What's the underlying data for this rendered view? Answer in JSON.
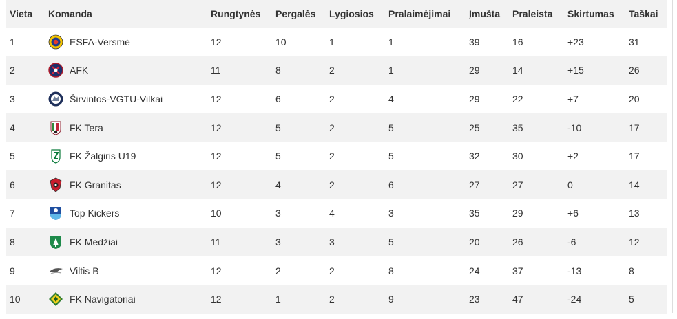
{
  "headers": {
    "position": "Vieta",
    "team": "Komanda",
    "played": "Rungtynės",
    "wins": "Pergalės",
    "draws": "Lygiosios",
    "losses": "Pralaimėjimai",
    "goals_for": "Įmušta",
    "goals_against": "Praleista",
    "goal_diff": "Skirtumas",
    "points": "Taškai"
  },
  "rows": [
    {
      "position": "1",
      "team": "ESFA-Versmė",
      "played": "12",
      "wins": "10",
      "draws": "1",
      "losses": "1",
      "goals_for": "39",
      "goals_against": "16",
      "goal_diff": "+23",
      "points": "31",
      "logo": "esfa-logo"
    },
    {
      "position": "2",
      "team": "AFK",
      "played": "11",
      "wins": "8",
      "draws": "2",
      "losses": "1",
      "goals_for": "29",
      "goals_against": "14",
      "goal_diff": "+15",
      "points": "26",
      "logo": "afk-logo"
    },
    {
      "position": "3",
      "team": "Širvintos-VGTU-Vilkai",
      "played": "12",
      "wins": "6",
      "draws": "2",
      "losses": "4",
      "goals_for": "29",
      "goals_against": "22",
      "goal_diff": "+7",
      "points": "20",
      "logo": "vilkai-logo"
    },
    {
      "position": "4",
      "team": "FK Tera",
      "played": "12",
      "wins": "5",
      "draws": "2",
      "losses": "5",
      "goals_for": "25",
      "goals_against": "35",
      "goal_diff": "-10",
      "points": "17",
      "logo": "tera-logo"
    },
    {
      "position": "5",
      "team": "FK Žalgiris U19",
      "played": "12",
      "wins": "5",
      "draws": "2",
      "losses": "5",
      "goals_for": "32",
      "goals_against": "30",
      "goal_diff": "+2",
      "points": "17",
      "logo": "zalgiris-logo"
    },
    {
      "position": "6",
      "team": "FK Granitas",
      "played": "12",
      "wins": "4",
      "draws": "2",
      "losses": "6",
      "goals_for": "27",
      "goals_against": "27",
      "goal_diff": "0",
      "points": "14",
      "logo": "granitas-logo"
    },
    {
      "position": "7",
      "team": "Top Kickers",
      "played": "10",
      "wins": "3",
      "draws": "4",
      "losses": "3",
      "goals_for": "35",
      "goals_against": "29",
      "goal_diff": "+6",
      "points": "13",
      "logo": "topkickers-logo"
    },
    {
      "position": "8",
      "team": "FK Medžiai",
      "played": "11",
      "wins": "3",
      "draws": "3",
      "losses": "5",
      "goals_for": "20",
      "goals_against": "26",
      "goal_diff": "-6",
      "points": "12",
      "logo": "medziai-logo"
    },
    {
      "position": "9",
      "team": "Viltis B",
      "played": "12",
      "wins": "2",
      "draws": "2",
      "losses": "8",
      "goals_for": "24",
      "goals_against": "37",
      "goal_diff": "-13",
      "points": "8",
      "logo": "viltis-logo"
    },
    {
      "position": "10",
      "team": "FK Navigatoriai",
      "played": "12",
      "wins": "1",
      "draws": "2",
      "losses": "9",
      "goals_for": "23",
      "goals_against": "47",
      "goal_diff": "-24",
      "points": "5",
      "logo": "navigatoriai-logo"
    }
  ],
  "colors": {
    "header_bg": "#f2f2f2",
    "row_even_bg": "#f2f2f2",
    "row_odd_bg": "#ffffff",
    "text": "#333333"
  }
}
